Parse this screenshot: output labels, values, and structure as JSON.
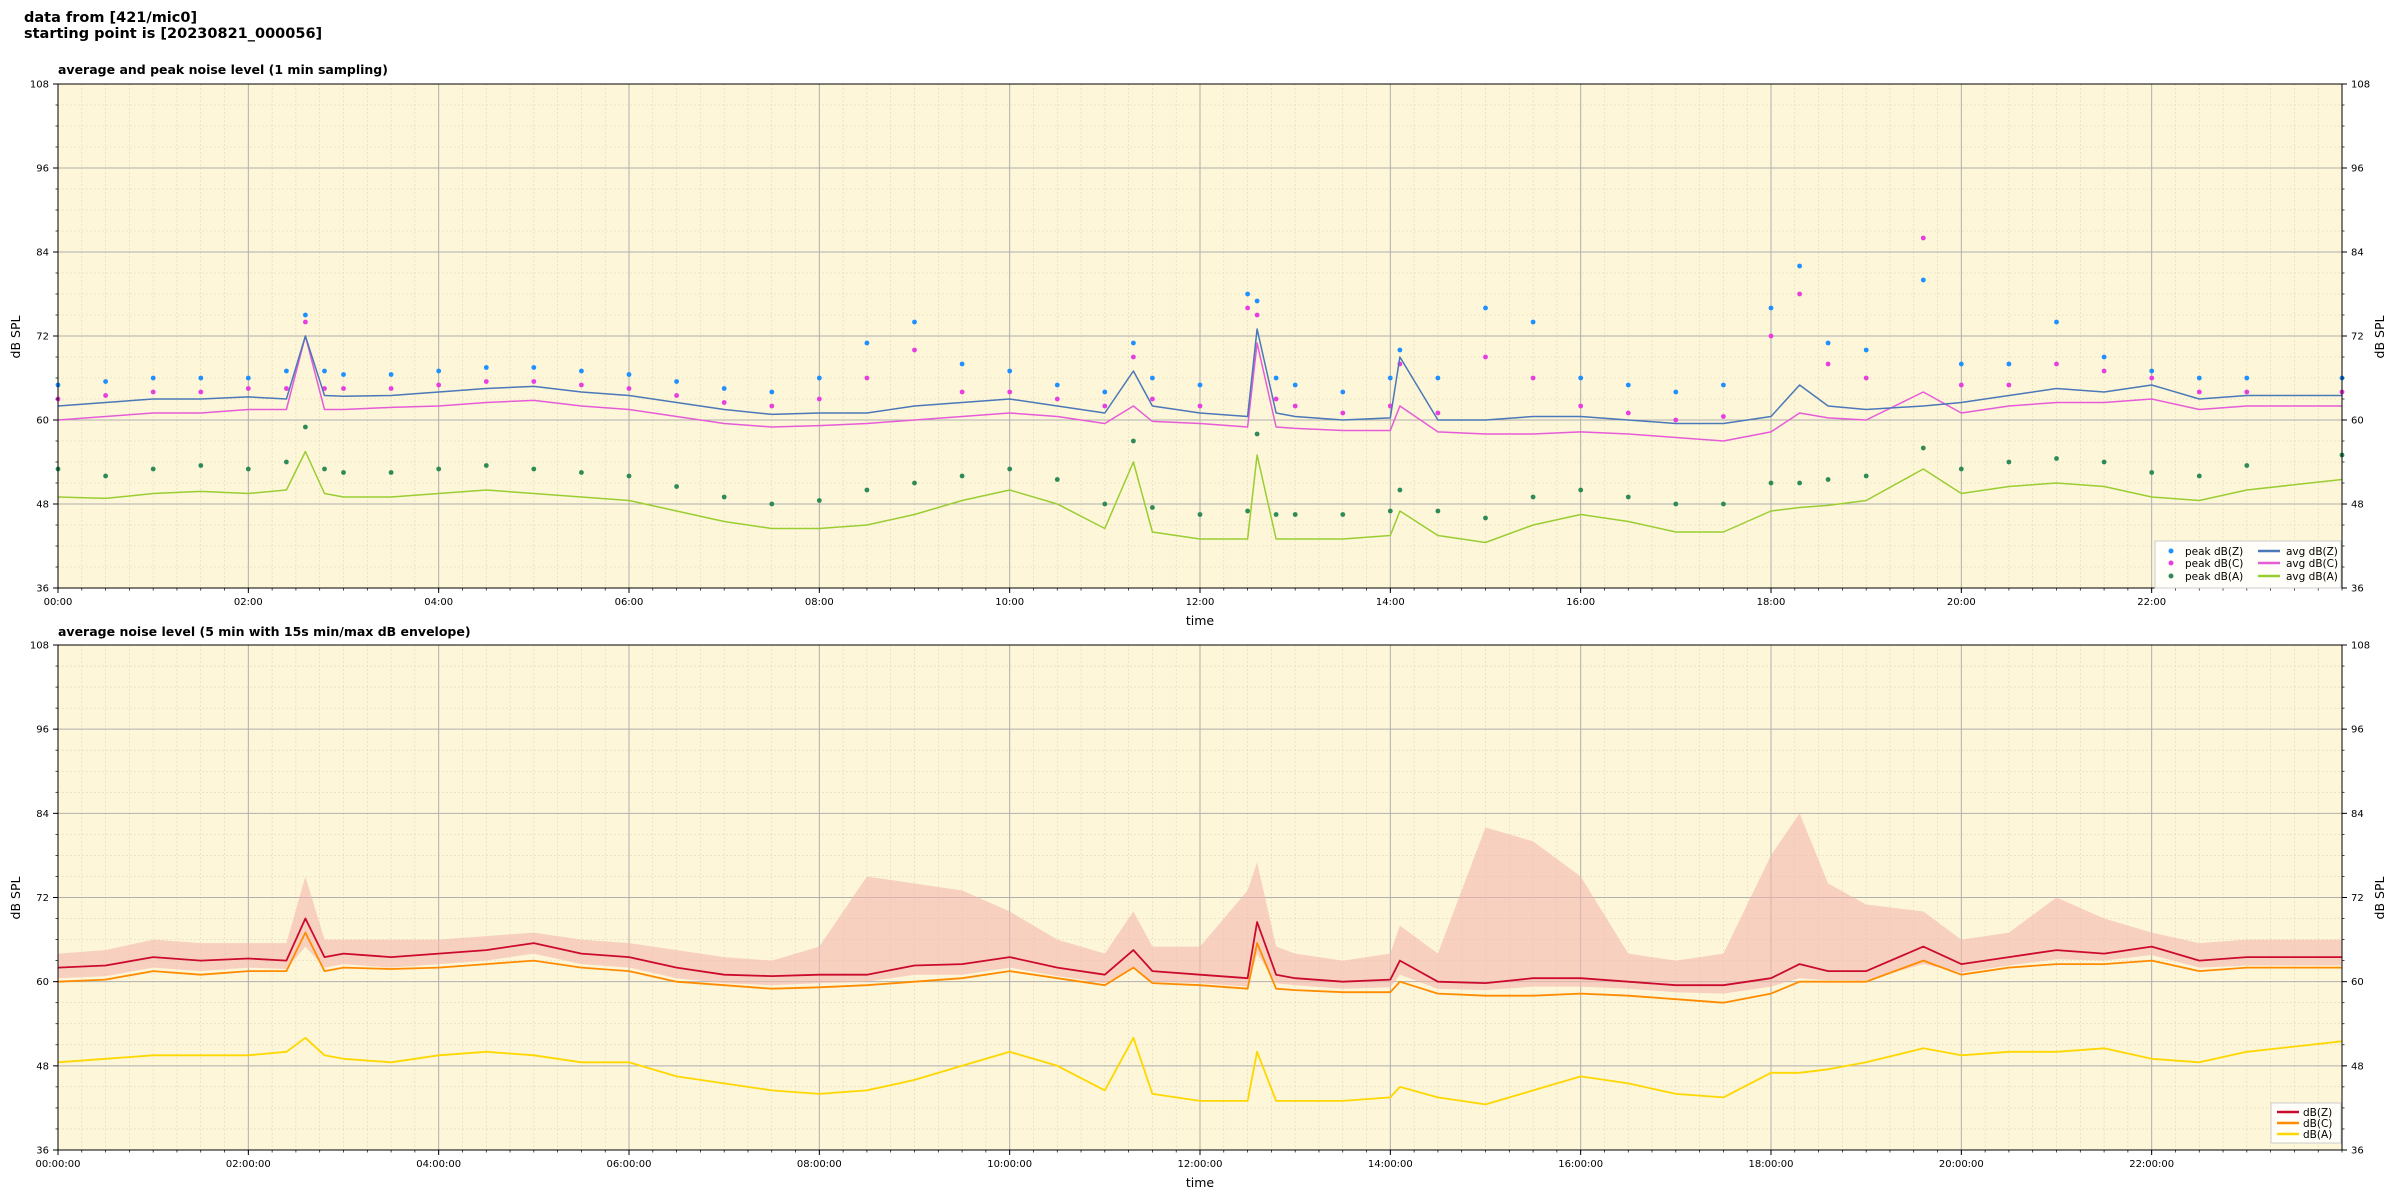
{
  "header": {
    "line1": "data from [421/mic0]",
    "line2": "starting point is [20230821_000056]"
  },
  "colors": {
    "panel_bg": "#fdf6d8",
    "grid_major": "#b0b0b0",
    "grid_minor": "#e0d8b8",
    "peak_z": "#1e90ff",
    "peak_c": "#e83ee0",
    "peak_a": "#2e8b57",
    "avg_z": "#4a78b8",
    "avg_c": "#e65cd8",
    "avg_a": "#9acd32",
    "line_z": "#cc0a2e",
    "line_c": "#ff8c00",
    "line_a": "#ffd700",
    "envelope": "#f4b8b0"
  },
  "chart_data": [
    {
      "type": "line",
      "title": "average and peak noise level (1 min sampling)",
      "xlabel": "time",
      "ylabel": "dB SPL",
      "ylabel_right": "dB SPL",
      "xlim": [
        0,
        24
      ],
      "ylim": [
        36,
        108
      ],
      "x_ticks": [
        0,
        2,
        4,
        6,
        8,
        10,
        12,
        14,
        16,
        18,
        20,
        22
      ],
      "x_tick_labels": [
        "00:00",
        "02:00",
        "04:00",
        "06:00",
        "08:00",
        "10:00",
        "12:00",
        "14:00",
        "16:00",
        "18:00",
        "20:00",
        "22:00"
      ],
      "y_ticks": [
        36,
        48,
        60,
        72,
        84,
        96,
        108
      ],
      "y_tick_labels": [
        "36",
        "48",
        "60",
        "72",
        "84",
        "96",
        "108"
      ],
      "grid": true,
      "legend_position": "lower-right",
      "legend": [
        {
          "label": "peak dB(Z)",
          "kind": "marker"
        },
        {
          "label": "peak dB(C)",
          "kind": "marker"
        },
        {
          "label": "peak dB(A)",
          "kind": "marker"
        },
        {
          "label": "avg dB(Z)",
          "kind": "line"
        },
        {
          "label": "avg dB(C)",
          "kind": "line"
        },
        {
          "label": "avg dB(A)",
          "kind": "line"
        }
      ],
      "x": [
        0,
        0.5,
        1,
        1.5,
        2,
        2.4,
        2.6,
        2.8,
        3,
        3.5,
        4,
        4.5,
        5,
        5.5,
        6,
        6.5,
        7,
        7.5,
        8,
        8.5,
        9,
        9.5,
        10,
        10.5,
        11,
        11.3,
        11.5,
        12,
        12.5,
        12.6,
        12.8,
        13,
        13.5,
        14,
        14.1,
        14.5,
        15,
        15.5,
        16,
        16.5,
        17,
        17.5,
        18,
        18.3,
        18.6,
        19,
        19.6,
        20,
        20.5,
        21,
        21.5,
        22,
        22.5,
        23,
        24
      ],
      "series": [
        {
          "name": "avg dB(Z)",
          "values": [
            62,
            62.5,
            63,
            63,
            63.3,
            63,
            72,
            63.5,
            63.4,
            63.5,
            64,
            64.5,
            64.8,
            64,
            63.5,
            62.5,
            61.5,
            60.8,
            61,
            61,
            62,
            62.5,
            63,
            62,
            61,
            67,
            62,
            61,
            60.5,
            73,
            61,
            60.5,
            60,
            60.3,
            69,
            60,
            60,
            60.5,
            60.5,
            60,
            59.5,
            59.5,
            60.5,
            65,
            62,
            61.5,
            62,
            62.5,
            63.5,
            64.5,
            64,
            65,
            63,
            63.5,
            63.5
          ]
        },
        {
          "name": "avg dB(C)",
          "values": [
            60,
            60.5,
            61,
            61,
            61.5,
            61.5,
            72,
            61.5,
            61.5,
            61.8,
            62,
            62.5,
            62.8,
            62,
            61.5,
            60.5,
            59.5,
            59,
            59.2,
            59.5,
            60,
            60.5,
            61,
            60.5,
            59.5,
            62,
            59.8,
            59.5,
            59,
            71,
            59,
            58.8,
            58.5,
            58.5,
            62,
            58.3,
            58,
            58,
            58.3,
            58,
            57.5,
            57,
            58.3,
            61,
            60.3,
            60,
            64,
            61,
            62,
            62.5,
            62.5,
            63,
            61.5,
            62,
            62
          ]
        },
        {
          "name": "avg dB(A)",
          "values": [
            49,
            48.8,
            49.5,
            49.8,
            49.5,
            50,
            55.5,
            49.5,
            49,
            49,
            49.5,
            50,
            49.5,
            49,
            48.5,
            47,
            45.5,
            44.5,
            44.5,
            45,
            46.5,
            48.5,
            50,
            48,
            44.5,
            54,
            44,
            43,
            43,
            55,
            43,
            43,
            43,
            43.5,
            47,
            43.5,
            42.5,
            45,
            46.5,
            45.5,
            44,
            44,
            47,
            47.5,
            47.8,
            48.5,
            53,
            49.5,
            50.5,
            51,
            50.5,
            49,
            48.5,
            50,
            51.5
          ]
        },
        {
          "name": "peak dB(Z)",
          "values": [
            65,
            65.5,
            66,
            66,
            66,
            67,
            75,
            67,
            66.5,
            66.5,
            67,
            67.5,
            67.5,
            67,
            66.5,
            65.5,
            64.5,
            64,
            66,
            71,
            74,
            68,
            67,
            65,
            64,
            71,
            66,
            65,
            78,
            77,
            66,
            65,
            64,
            66,
            70,
            66,
            76,
            74,
            66,
            65,
            64,
            65,
            76,
            82,
            71,
            70,
            80,
            68,
            68,
            74,
            69,
            67,
            66,
            66,
            66
          ]
        },
        {
          "name": "peak dB(C)",
          "values": [
            63,
            63.5,
            64,
            64,
            64.5,
            64.5,
            74,
            64.5,
            64.5,
            64.5,
            65,
            65.5,
            65.5,
            65,
            64.5,
            63.5,
            62.5,
            62,
            63,
            66,
            70,
            64,
            64,
            63,
            62,
            69,
            63,
            62,
            76,
            75,
            63,
            62,
            61,
            62,
            68,
            61,
            69,
            66,
            62,
            61,
            60,
            60.5,
            72,
            78,
            68,
            66,
            86,
            65,
            65,
            68,
            67,
            66,
            64,
            64,
            64
          ]
        },
        {
          "name": "peak dB(A)",
          "values": [
            53,
            52,
            53,
            53.5,
            53,
            54,
            59,
            53,
            52.5,
            52.5,
            53,
            53.5,
            53,
            52.5,
            52,
            50.5,
            49,
            48,
            48.5,
            50,
            51,
            52,
            53,
            51.5,
            48,
            57,
            47.5,
            46.5,
            47,
            58,
            46.5,
            46.5,
            46.5,
            47,
            50,
            47,
            46,
            49,
            50,
            49,
            48,
            48,
            51,
            51,
            51.5,
            52,
            56,
            53,
            54,
            54.5,
            54,
            52.5,
            52,
            53.5,
            55
          ]
        }
      ]
    },
    {
      "type": "line",
      "title": "average noise level (5 min with 15s min/max dB envelope)",
      "xlabel": "time",
      "ylabel": "dB SPL",
      "ylabel_right": "dB SPL",
      "xlim": [
        0,
        24
      ],
      "ylim": [
        36,
        108
      ],
      "x_ticks": [
        0,
        2,
        4,
        6,
        8,
        10,
        12,
        14,
        16,
        18,
        20,
        22
      ],
      "x_tick_labels": [
        "00:00:00",
        "02:00:00",
        "04:00:00",
        "06:00:00",
        "08:00:00",
        "10:00:00",
        "12:00:00",
        "14:00:00",
        "16:00:00",
        "18:00:00",
        "20:00:00",
        "22:00:00"
      ],
      "y_ticks": [
        36,
        48,
        60,
        72,
        84,
        96,
        108
      ],
      "y_tick_labels": [
        "36",
        "48",
        "60",
        "72",
        "84",
        "96",
        "108"
      ],
      "grid": true,
      "legend_position": "lower-right",
      "legend": [
        {
          "label": "dB(Z)"
        },
        {
          "label": "dB(C)"
        },
        {
          "label": "dB(A)"
        }
      ],
      "x": [
        0,
        0.5,
        1,
        1.5,
        2,
        2.4,
        2.6,
        2.8,
        3,
        3.5,
        4,
        4.5,
        5,
        5.5,
        6,
        6.5,
        7,
        7.5,
        8,
        8.5,
        9,
        9.5,
        10,
        10.5,
        11,
        11.3,
        11.5,
        12,
        12.5,
        12.6,
        12.8,
        13,
        13.5,
        14,
        14.1,
        14.5,
        15,
        15.5,
        16,
        16.5,
        17,
        17.5,
        18,
        18.3,
        18.6,
        19,
        19.6,
        20,
        20.5,
        21,
        21.5,
        22,
        22.5,
        23,
        24
      ],
      "series": [
        {
          "name": "dB(Z)",
          "values": [
            62,
            62.3,
            63.5,
            63,
            63.3,
            63,
            69,
            63.5,
            64,
            63.5,
            64,
            64.5,
            65.5,
            64,
            63.5,
            62,
            61,
            60.8,
            61,
            61,
            62.3,
            62.5,
            63.5,
            62,
            61,
            64.5,
            61.5,
            61,
            60.5,
            68.5,
            61,
            60.5,
            60,
            60.3,
            63,
            60,
            59.8,
            60.5,
            60.5,
            60,
            59.5,
            59.5,
            60.5,
            62.5,
            61.5,
            61.5,
            65,
            62.5,
            63.5,
            64.5,
            64,
            65,
            63,
            63.5,
            63.5
          ]
        },
        {
          "name": "dB(C)",
          "values": [
            60,
            60.3,
            61.5,
            61,
            61.5,
            61.5,
            67,
            61.5,
            62,
            61.8,
            62,
            62.5,
            63,
            62,
            61.5,
            60,
            59.5,
            59,
            59.2,
            59.5,
            60,
            60.5,
            61.5,
            60.5,
            59.5,
            62,
            59.8,
            59.5,
            59,
            65.5,
            59,
            58.8,
            58.5,
            58.5,
            60,
            58.3,
            58,
            58,
            58.3,
            58,
            57.5,
            57,
            58.3,
            60,
            60,
            60,
            63,
            61,
            62,
            62.5,
            62.5,
            63,
            61.5,
            62,
            62
          ]
        },
        {
          "name": "dB(A)",
          "values": [
            48.5,
            49,
            49.5,
            49.5,
            49.5,
            50,
            52,
            49.5,
            49,
            48.5,
            49.5,
            50,
            49.5,
            48.5,
            48.5,
            46.5,
            45.5,
            44.5,
            44,
            44.5,
            46,
            48,
            50,
            48,
            44.5,
            52,
            44,
            43,
            43,
            50,
            43,
            43,
            43,
            43.5,
            45,
            43.5,
            42.5,
            44.5,
            46.5,
            45.5,
            44,
            43.5,
            47,
            47,
            47.5,
            48.5,
            50.5,
            49.5,
            50,
            50,
            50.5,
            49,
            48.5,
            50,
            51.5
          ]
        },
        {
          "name": "envelope max",
          "values": [
            64,
            64.5,
            66,
            65.5,
            65.5,
            65.5,
            75,
            66,
            66,
            66,
            66,
            66.5,
            67,
            66,
            65.5,
            64.5,
            63.5,
            63,
            65,
            75,
            74,
            73,
            70,
            66,
            64,
            70,
            65,
            65,
            73,
            77,
            65,
            64,
            63,
            64,
            68,
            64,
            82,
            80,
            75,
            64,
            63,
            64,
            78,
            84,
            74,
            71,
            70,
            66,
            67,
            72,
            69,
            67,
            65.5,
            66,
            66
          ]
        },
        {
          "name": "envelope min",
          "values": [
            60.5,
            60.8,
            62,
            61.5,
            62,
            61.8,
            65,
            62,
            62.5,
            62,
            62.5,
            63,
            64,
            62.5,
            62,
            60.5,
            59.8,
            59.5,
            59.8,
            60,
            61,
            61,
            62,
            60.8,
            59.8,
            62,
            60,
            59.8,
            59.3,
            64,
            59.8,
            59.5,
            59,
            59.2,
            61,
            59,
            58.8,
            59.3,
            59.3,
            59,
            58.5,
            58.3,
            59.3,
            60.5,
            60.2,
            60.2,
            62.5,
            61.3,
            62.3,
            63.2,
            63,
            63.8,
            62,
            62.3,
            62.3
          ]
        }
      ]
    }
  ]
}
